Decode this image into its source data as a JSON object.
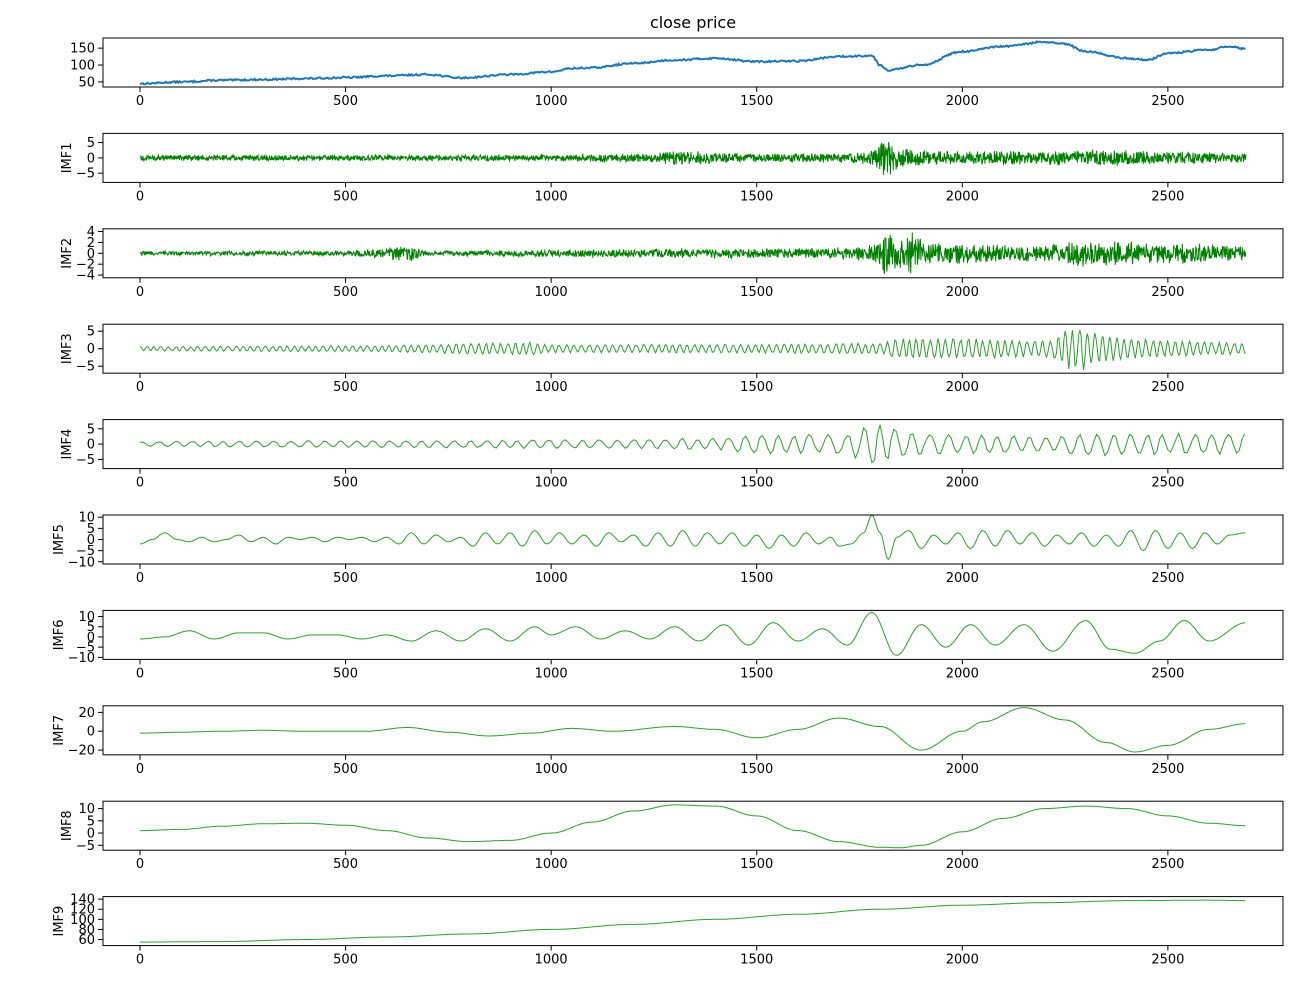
{
  "chart_data": [
    {
      "type": "line",
      "title": "close price",
      "ylabel": "",
      "xlim": [
        -90,
        2780
      ],
      "ylim": [
        35,
        180
      ],
      "yticks": [
        50,
        100,
        150
      ],
      "xticks": [
        0,
        500,
        1000,
        1500,
        2000,
        2500
      ],
      "color": "#1f77b4",
      "series": [
        {
          "x": [
            0,
            100,
            200,
            300,
            400,
            500,
            600,
            700,
            780,
            900,
            1000,
            1050,
            1100,
            1200,
            1300,
            1400,
            1500,
            1600,
            1700,
            1780,
            1800,
            1820,
            1900,
            2000,
            2100,
            2200,
            2250,
            2300,
            2400,
            2450,
            2500,
            2600,
            2650,
            2690
          ],
          "values": [
            45,
            50,
            55,
            57,
            60,
            63,
            68,
            72,
            62,
            72,
            80,
            90,
            92,
            105,
            115,
            120,
            110,
            112,
            125,
            128,
            100,
            85,
            100,
            140,
            155,
            168,
            162,
            140,
            120,
            115,
            135,
            145,
            155,
            148
          ]
        }
      ]
    },
    {
      "type": "line",
      "title": "",
      "ylabel": "IMF1",
      "xlim": [
        -90,
        2780
      ],
      "ylim": [
        -8,
        8
      ],
      "yticks": [
        -5,
        0,
        5
      ],
      "xticks": [
        0,
        500,
        1000,
        1500,
        2000,
        2500
      ],
      "color": "#008000",
      "envelope": {
        "x": [
          0,
          500,
          1000,
          1250,
          1300,
          1500,
          1700,
          1780,
          1810,
          1850,
          1900,
          2000,
          2200,
          2300,
          2500,
          2690
        ],
        "amp": [
          1.0,
          1.0,
          1.1,
          1.5,
          2.5,
          1.4,
          1.6,
          2.5,
          6.5,
          3.5,
          2.5,
          2.2,
          2.4,
          2.8,
          2.2,
          1.6
        ]
      }
    },
    {
      "type": "line",
      "title": "",
      "ylabel": "IMF2",
      "xlim": [
        -90,
        2780
      ],
      "ylim": [
        -4.5,
        4.5
      ],
      "yticks": [
        -4,
        -2,
        0,
        2,
        4
      ],
      "xticks": [
        0,
        500,
        1000,
        1500,
        2000,
        2500
      ],
      "color": "#008000",
      "envelope": {
        "x": [
          0,
          500,
          660,
          700,
          1000,
          1500,
          1700,
          1780,
          1810,
          1850,
          1880,
          1920,
          2000,
          2200,
          2300,
          2500,
          2690
        ],
        "amp": [
          0.4,
          0.5,
          1.5,
          0.5,
          0.7,
          1.0,
          1.1,
          1.8,
          4.0,
          3.0,
          4.3,
          2.0,
          2.0,
          1.6,
          2.5,
          2.0,
          1.4
        ]
      }
    },
    {
      "type": "line",
      "title": "",
      "ylabel": "IMF3",
      "xlim": [
        -90,
        2780
      ],
      "ylim": [
        -7,
        7
      ],
      "yticks": [
        -5,
        0,
        5
      ],
      "xticks": [
        0,
        500,
        1000,
        1500,
        2000,
        2500
      ],
      "color": "#2ca02c",
      "envelope": {
        "x": [
          0,
          500,
          950,
          1000,
          1500,
          1800,
          1850,
          2000,
          2200,
          2280,
          2350,
          2500,
          2690
        ],
        "amp": [
          0.7,
          0.9,
          1.8,
          1.2,
          1.3,
          1.6,
          3.2,
          3.0,
          2.4,
          6.5,
          3.6,
          2.5,
          1.6
        ]
      }
    },
    {
      "type": "line",
      "title": "",
      "ylabel": "IMF4",
      "xlim": [
        -90,
        2780
      ],
      "ylim": [
        -8,
        8
      ],
      "yticks": [
        -5,
        0,
        5
      ],
      "xticks": [
        0,
        500,
        1000,
        1500,
        2000,
        2500
      ],
      "color": "#2ca02c",
      "envelope": {
        "x": [
          0,
          500,
          1000,
          1400,
          1500,
          1700,
          1800,
          1820,
          1900,
          2000,
          2200,
          2300,
          2500,
          2690
        ],
        "amp": [
          0.9,
          1.2,
          1.5,
          2.0,
          3.5,
          3.3,
          7.5,
          6.0,
          3.5,
          3.5,
          2.6,
          4.0,
          3.6,
          3.6
        ]
      }
    },
    {
      "type": "line",
      "title": "",
      "ylabel": "IMF5",
      "xlim": [
        -90,
        2780
      ],
      "ylim": [
        -11,
        11
      ],
      "yticks": [
        -10,
        -5,
        0,
        5,
        10
      ],
      "xticks": [
        0,
        500,
        1000,
        1500,
        2000,
        2500
      ],
      "color": "#2ca02c",
      "series": [
        {
          "x": [
            0,
            30,
            60,
            90,
            120,
            150,
            180,
            210,
            240,
            270,
            300,
            330,
            360,
            390,
            420,
            450,
            480,
            510,
            540,
            570,
            600,
            630,
            660,
            690,
            720,
            750,
            780,
            810,
            840,
            870,
            900,
            930,
            960,
            990,
            1020,
            1050,
            1080,
            1110,
            1140,
            1170,
            1200,
            1230,
            1260,
            1290,
            1320,
            1350,
            1380,
            1410,
            1440,
            1470,
            1500,
            1530,
            1560,
            1590,
            1620,
            1650,
            1680,
            1700,
            1730,
            1760,
            1780,
            1800,
            1820,
            1840,
            1870,
            1900,
            1930,
            1960,
            1990,
            2020,
            2050,
            2080,
            2110,
            2140,
            2170,
            2200,
            2230,
            2260,
            2290,
            2320,
            2350,
            2380,
            2410,
            2440,
            2470,
            2500,
            2530,
            2560,
            2590,
            2620,
            2650,
            2690
          ],
          "values": [
            -2,
            0,
            3,
            0,
            -1,
            1,
            -1,
            0,
            2,
            -1,
            1,
            -2,
            1,
            0,
            1,
            -1,
            1,
            0,
            1,
            -1,
            1,
            -2,
            3,
            -2,
            2,
            -1,
            1,
            -3,
            3,
            -2,
            3,
            -3,
            4,
            -2,
            3,
            -2,
            2,
            -3,
            3,
            -1,
            2,
            -3,
            3,
            -3,
            4,
            -3,
            3,
            -2,
            3,
            -3,
            2,
            -4,
            2,
            -3,
            3,
            -2,
            1,
            -3,
            -2,
            3,
            11,
            3,
            -9,
            1,
            4,
            -4,
            2,
            -2,
            3,
            -4,
            4,
            -3,
            4,
            -2,
            3,
            -3,
            2,
            -2,
            3,
            -3,
            2,
            -3,
            4,
            -5,
            4,
            -4,
            3,
            -4,
            3,
            -2,
            2,
            3
          ]
        }
      ]
    },
    {
      "type": "line",
      "title": "",
      "ylabel": "IMF6",
      "xlim": [
        -90,
        2780
      ],
      "ylim": [
        -11,
        13
      ],
      "yticks": [
        -10,
        -5,
        0,
        5,
        10
      ],
      "xticks": [
        0,
        500,
        1000,
        1500,
        2000,
        2500
      ],
      "color": "#2ca02c",
      "series": [
        {
          "x": [
            0,
            60,
            120,
            180,
            240,
            300,
            360,
            420,
            480,
            540,
            600,
            660,
            720,
            780,
            840,
            900,
            960,
            1000,
            1060,
            1120,
            1180,
            1240,
            1300,
            1360,
            1420,
            1480,
            1540,
            1600,
            1660,
            1720,
            1780,
            1840,
            1900,
            1960,
            2020,
            2080,
            2150,
            2220,
            2300,
            2360,
            2420,
            2480,
            2540,
            2600,
            2690
          ],
          "values": [
            -1,
            0,
            3,
            -1,
            2,
            2,
            -1,
            1,
            1,
            -1,
            1,
            -2,
            3,
            -2,
            4,
            -2,
            5,
            1,
            5,
            -1,
            3,
            -1,
            5,
            -2,
            6,
            -4,
            7,
            -2,
            4,
            -4,
            12,
            -9,
            6,
            -5,
            6,
            -4,
            6,
            -7,
            8,
            -6,
            -8,
            -2,
            8,
            -2,
            7
          ]
        }
      ]
    },
    {
      "type": "line",
      "title": "",
      "ylabel": "IMF7",
      "xlim": [
        -90,
        2780
      ],
      "ylim": [
        -25,
        27
      ],
      "yticks": [
        -20,
        0,
        20
      ],
      "xticks": [
        0,
        500,
        1000,
        1500,
        2000,
        2500
      ],
      "color": "#2ca02c",
      "series": [
        {
          "x": [
            0,
            100,
            200,
            300,
            400,
            500,
            550,
            650,
            750,
            850,
            950,
            1050,
            1150,
            1300,
            1400,
            1500,
            1600,
            1700,
            1800,
            1900,
            2000,
            2050,
            2150,
            2250,
            2350,
            2420,
            2500,
            2600,
            2690
          ],
          "values": [
            -2,
            -1,
            0,
            1,
            0,
            0,
            0,
            4,
            -1,
            -5,
            -2,
            3,
            0,
            5,
            2,
            -7,
            2,
            14,
            5,
            -20,
            0,
            10,
            25,
            12,
            -12,
            -22,
            -15,
            2,
            8
          ]
        }
      ]
    },
    {
      "type": "line",
      "title": "",
      "ylabel": "IMF8",
      "xlim": [
        -90,
        2780
      ],
      "ylim": [
        -7,
        13
      ],
      "yticks": [
        -5,
        0,
        5,
        10
      ],
      "xticks": [
        0,
        500,
        1000,
        1500,
        2000,
        2500
      ],
      "color": "#2ca02c",
      "series": [
        {
          "x": [
            0,
            100,
            200,
            300,
            400,
            500,
            600,
            700,
            800,
            900,
            1000,
            1100,
            1200,
            1300,
            1400,
            1500,
            1600,
            1700,
            1800,
            1850,
            1900,
            2000,
            2100,
            2200,
            2300,
            2400,
            2500,
            2600,
            2690
          ],
          "values": [
            1,
            1.5,
            2.8,
            3.8,
            4,
            3.2,
            1,
            -2,
            -3.5,
            -3,
            0,
            4.5,
            9,
            11.5,
            11,
            7,
            1,
            -3.5,
            -5.8,
            -6,
            -5,
            0.5,
            6,
            10,
            11,
            10,
            7,
            4,
            3
          ]
        }
      ]
    },
    {
      "type": "line",
      "title": "",
      "ylabel": "IMF9",
      "xlim": [
        -90,
        2780
      ],
      "ylim": [
        48,
        145
      ],
      "yticks": [
        60,
        80,
        100,
        120,
        140
      ],
      "xticks": [
        0,
        500,
        1000,
        1500,
        2000,
        2500
      ],
      "color": "#2ca02c",
      "series": [
        {
          "x": [
            0,
            200,
            400,
            600,
            800,
            1000,
            1200,
            1400,
            1600,
            1800,
            2000,
            2200,
            2400,
            2600,
            2690
          ],
          "values": [
            55,
            56,
            60,
            65,
            71,
            80,
            90,
            100,
            110,
            120,
            128,
            133,
            137,
            138,
            137
          ]
        }
      ]
    }
  ]
}
